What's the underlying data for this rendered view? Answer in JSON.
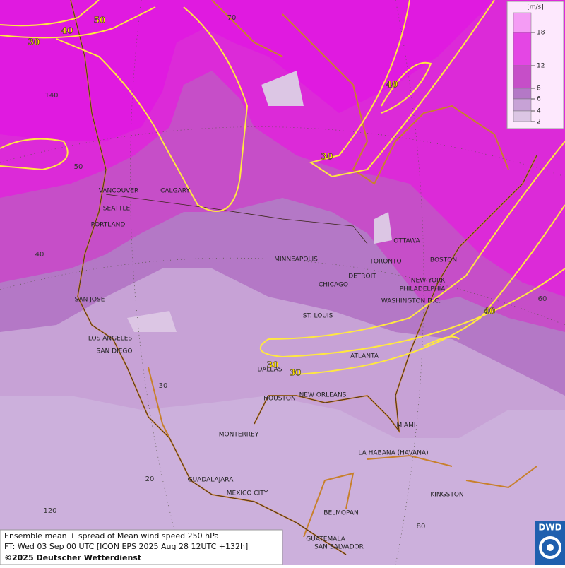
{
  "map": {
    "cities": [
      "VANCOUVER",
      "CALGARY",
      "SEATTLE",
      "PORTLAND",
      "SAN JOSE",
      "LOS ANGELES",
      "SAN DIEGO",
      "MINNEAPOLIS",
      "TORONTO",
      "OTTAWA",
      "DETROIT",
      "CHICAGO",
      "BOSTON",
      "NEW YORK",
      "PHILADELPHIA",
      "WASHINGTON D.C.",
      "ST. LOUIS",
      "ATLANTA",
      "DALLAS",
      "HOUSTON",
      "NEW ORLEANS",
      "MIAMI",
      "MONTERREY",
      "LA HABANA (HAVANA)",
      "GUADALAJARA",
      "MEXICO CITY",
      "KINGSTON",
      "BELMOPAN",
      "GUATEMALA",
      "SAN SALVADOR"
    ],
    "grid_labels": [
      70,
      140,
      50,
      40,
      30,
      20,
      120,
      80,
      60
    ],
    "contour_labels": [
      50,
      40,
      30,
      40,
      30,
      40,
      30,
      30
    ],
    "legend": {
      "unit": "[m/s]",
      "levels": [
        18,
        12,
        8,
        6,
        4,
        2
      ],
      "colors": [
        "#f49cf4",
        "#e446e4",
        "#c64ec8",
        "#b478c6",
        "#c7a2d6",
        "#dcc6e4",
        "#ece2f0"
      ]
    },
    "footer": [
      "Ensemble mean + spread of Mean wind speed 250 hPa",
      "FT: Wed 03 Sep 00 UTC [ICON EPS 2025 Aug 28 12UTC +132h]",
      "©2025 Deutscher Wetterdienst"
    ],
    "logo": "DWD"
  }
}
